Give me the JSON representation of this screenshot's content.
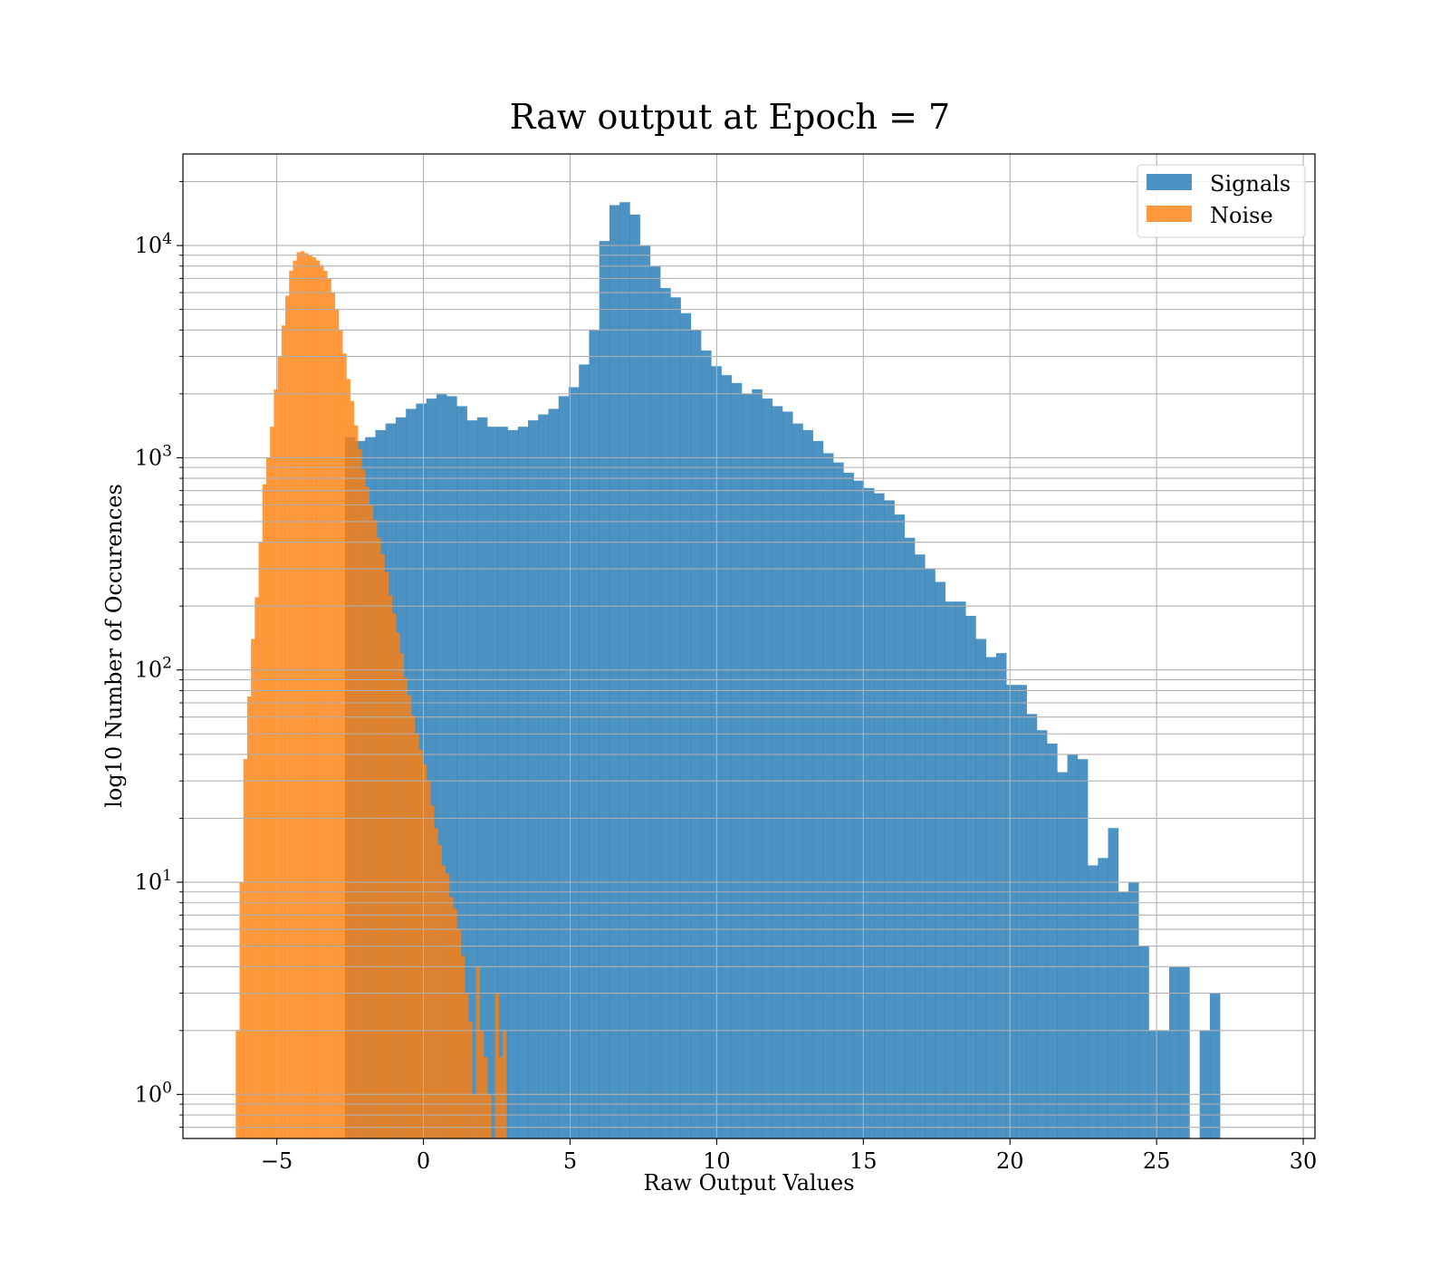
{
  "chart_data": {
    "type": "histogram",
    "title": "Raw output at Epoch = 7",
    "xlabel": "Raw Output Values",
    "ylabel": "log10 Number of Occurences",
    "xlim": [
      -8.2,
      30.4
    ],
    "ylim": [
      0.62,
      27000
    ],
    "yscale": "log",
    "grid": true,
    "legend_position": "top-right",
    "x_ticks": [
      {
        "value": -5,
        "label": "−5"
      },
      {
        "value": 0,
        "label": "0"
      },
      {
        "value": 5,
        "label": "5"
      },
      {
        "value": 10,
        "label": "10"
      },
      {
        "value": 15,
        "label": "15"
      },
      {
        "value": 20,
        "label": "20"
      },
      {
        "value": 25,
        "label": "25"
      },
      {
        "value": 30,
        "label": "30"
      }
    ],
    "y_ticks": [
      {
        "value": 1,
        "base": "10",
        "exp": "0"
      },
      {
        "value": 10,
        "base": "10",
        "exp": "1"
      },
      {
        "value": 100,
        "base": "10",
        "exp": "2"
      },
      {
        "value": 1000,
        "base": "10",
        "exp": "3"
      },
      {
        "value": 10000,
        "base": "10",
        "exp": "4"
      }
    ],
    "series": [
      {
        "name": "Signals",
        "color": "#1f77b4",
        "opacity": 0.8,
        "bin_start": -2.68,
        "bin_width": 0.347,
        "counts": [
          1250,
          1200,
          1250,
          1350,
          1450,
          1550,
          1700,
          1800,
          1900,
          2000,
          1950,
          1750,
          1500,
          1550,
          1400,
          1400,
          1350,
          1400,
          1500,
          1600,
          1700,
          1950,
          2150,
          2750,
          4000,
          10500,
          15500,
          16000,
          14000,
          10000,
          8000,
          6300,
          5700,
          4800,
          4000,
          3200,
          2700,
          2450,
          2250,
          2000,
          2100,
          1900,
          1750,
          1650,
          1450,
          1350,
          1200,
          1050,
          950,
          850,
          780,
          720,
          680,
          630,
          540,
          420,
          350,
          300,
          260,
          210,
          210,
          180,
          140,
          115,
          120,
          85,
          85,
          62,
          52,
          45,
          33,
          40,
          38,
          12,
          13,
          18,
          9,
          10,
          5,
          2,
          2,
          4,
          4,
          0,
          2,
          3
        ]
      },
      {
        "name": "Noise",
        "color": "#ff7f0e",
        "opacity": 0.8,
        "bin_start": -6.4,
        "bin_width": 0.13,
        "counts": [
          2,
          10,
          38,
          75,
          140,
          220,
          400,
          750,
          1000,
          1400,
          2100,
          3000,
          4200,
          5800,
          7600,
          8500,
          9300,
          9400,
          9200,
          9000,
          8800,
          8500,
          8100,
          7600,
          7000,
          6000,
          5000,
          4000,
          3100,
          2350,
          1850,
          1420,
          1100,
          880,
          730,
          600,
          510,
          420,
          350,
          290,
          225,
          185,
          150,
          120,
          92,
          76,
          61,
          50,
          42,
          36,
          30,
          23,
          18,
          15,
          12,
          11,
          8.5,
          7.5,
          6.0,
          4.5,
          3.0,
          2.2,
          1.0,
          4.0,
          2.0,
          1.5,
          1.0,
          0.5,
          3.0,
          1.5,
          2.0
        ]
      }
    ]
  }
}
